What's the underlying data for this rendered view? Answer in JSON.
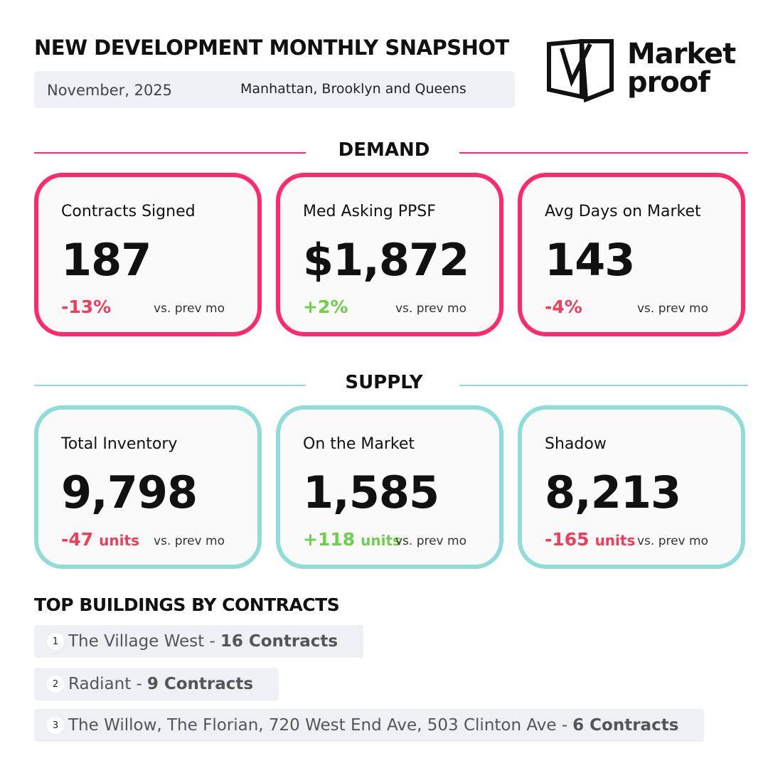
{
  "header": {
    "title": "NEW DEVELOPMENT MONTHLY SNAPSHOT",
    "date": "November, 2025",
    "region": "Manhattan, Brooklyn and Queens"
  },
  "logo": {
    "line1": "Market",
    "line2": "proof"
  },
  "sections": [
    {
      "title": "DEMAND",
      "cards": [
        {
          "label": "Contracts Signed",
          "value": "187",
          "change": "-13%",
          "compare": "vs. prev mo"
        },
        {
          "label": "Med Asking PPSF",
          "value": "$1,872",
          "change": "+2%",
          "compare": "vs. prev mo"
        },
        {
          "label": "Avg Days on Market",
          "value": "143",
          "change": "-4%",
          "compare": "vs. prev mo"
        }
      ]
    },
    {
      "title": "SUPPLY",
      "cards": [
        {
          "label": "Total Inventory",
          "value": "9,798",
          "change": "-47",
          "unit": "units",
          "compare": "vs. prev mo"
        },
        {
          "label": "On the Market",
          "value": "1,585",
          "change": "+118",
          "unit": "units",
          "compare": "vs. prev mo"
        },
        {
          "label": "Shadow",
          "value": "8,213",
          "change": "-165",
          "unit": "units",
          "compare": "vs. prev mo"
        }
      ]
    }
  ],
  "top_buildings": {
    "title": "TOP BUILDINGS BY CONTRACTS",
    "items": [
      {
        "rank": "1",
        "name": "The Village West -",
        "contracts": "16 Contracts"
      },
      {
        "rank": "2",
        "name": "Radiant -",
        "contracts": "9 Contracts"
      },
      {
        "rank": "3",
        "name": "The Willow, The Florian, 720 West End Ave, 503 Clinton Ave -",
        "contracts": "6 Contracts"
      }
    ]
  }
}
